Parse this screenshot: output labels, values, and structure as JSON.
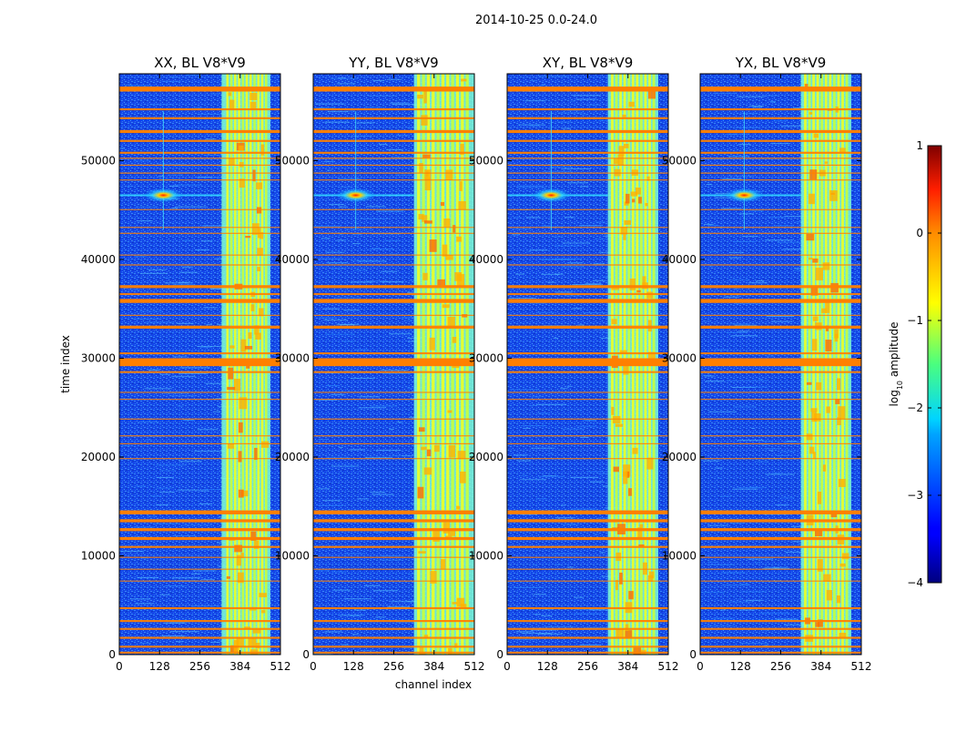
{
  "chart_data": {
    "type": "heatmap",
    "suptitle": "2014-10-25 0.0-24.0",
    "xlabel": "channel index",
    "ylabel": "time index",
    "xlim": [
      0,
      512
    ],
    "ylim": [
      0,
      58800
    ],
    "x_ticks": [
      0,
      128,
      256,
      384,
      512
    ],
    "y_ticks": [
      0,
      10000,
      20000,
      30000,
      40000,
      50000
    ],
    "panels": [
      {
        "title": "XX, BL V8*V9",
        "band_start": 325,
        "band_end": 480,
        "bright_band_start": 340,
        "bright_band_end": 475,
        "blob_channel": 140
      },
      {
        "title": "YY, BL V8*V9",
        "band_start": 320,
        "band_end": 512,
        "bright_band_start": 330,
        "bright_band_end": 500,
        "blob_channel": 135
      },
      {
        "title": "XY, BL V8*V9",
        "band_start": 320,
        "band_end": 480,
        "bright_band_start": 330,
        "bright_band_end": 475,
        "blob_channel": 140
      },
      {
        "title": "YX, BL V8*V9",
        "band_start": 320,
        "band_end": 480,
        "bright_band_start": 330,
        "bright_band_end": 475,
        "blob_channel": 140
      }
    ],
    "blob_time": 46500,
    "colorbar": {
      "label": "log10 amplitude",
      "label_main": "log",
      "label_sub": "10",
      "label_rest": " amplitude",
      "min": -4,
      "max": 1,
      "ticks": [
        1,
        0,
        -1,
        -2,
        -3,
        -4
      ],
      "tick_labels": [
        "1",
        "0",
        "−1",
        "−2",
        "−3",
        "−4"
      ],
      "colormap": "jet"
    },
    "flagged_rows": [
      {
        "start": 57000,
        "end": 57500,
        "strength": 1.0
      },
      {
        "start": 55100,
        "end": 55300,
        "strength": 0.9
      },
      {
        "start": 54200,
        "end": 54400,
        "strength": 0.9
      },
      {
        "start": 52800,
        "end": 53100,
        "strength": 1.0
      },
      {
        "start": 51900,
        "end": 52100,
        "strength": 0.9
      },
      {
        "start": 50700,
        "end": 50900,
        "strength": 0.9
      },
      {
        "start": 50200,
        "end": 50300,
        "strength": 0.8
      },
      {
        "start": 49500,
        "end": 49600,
        "strength": 0.8
      },
      {
        "start": 48700,
        "end": 48800,
        "strength": 0.8
      },
      {
        "start": 48000,
        "end": 48100,
        "strength": 0.7
      },
      {
        "start": 45000,
        "end": 45100,
        "strength": 0.6
      },
      {
        "start": 43200,
        "end": 43300,
        "strength": 0.6
      },
      {
        "start": 42600,
        "end": 42700,
        "strength": 0.7
      },
      {
        "start": 40400,
        "end": 40500,
        "strength": 0.6
      },
      {
        "start": 39400,
        "end": 39500,
        "strength": 0.8
      },
      {
        "start": 37100,
        "end": 37400,
        "strength": 0.9
      },
      {
        "start": 36400,
        "end": 36600,
        "strength": 0.8
      },
      {
        "start": 35600,
        "end": 36000,
        "strength": 1.0
      },
      {
        "start": 34300,
        "end": 34400,
        "strength": 0.7
      },
      {
        "start": 33000,
        "end": 33300,
        "strength": 0.9
      },
      {
        "start": 30400,
        "end": 30600,
        "strength": 0.8
      },
      {
        "start": 29200,
        "end": 30000,
        "strength": 1.0
      },
      {
        "start": 28500,
        "end": 28700,
        "strength": 0.8
      },
      {
        "start": 26500,
        "end": 26600,
        "strength": 0.6
      },
      {
        "start": 25800,
        "end": 25900,
        "strength": 0.6
      },
      {
        "start": 23800,
        "end": 23900,
        "strength": 0.7
      },
      {
        "start": 22100,
        "end": 22200,
        "strength": 0.7
      },
      {
        "start": 21300,
        "end": 21400,
        "strength": 0.7
      },
      {
        "start": 19800,
        "end": 19900,
        "strength": 0.6
      },
      {
        "start": 14200,
        "end": 14600,
        "strength": 1.0
      },
      {
        "start": 13400,
        "end": 13700,
        "strength": 1.0
      },
      {
        "start": 12500,
        "end": 12800,
        "strength": 1.0
      },
      {
        "start": 11600,
        "end": 11900,
        "strength": 1.0
      },
      {
        "start": 10800,
        "end": 11000,
        "strength": 0.9
      },
      {
        "start": 9800,
        "end": 9900,
        "strength": 0.7
      },
      {
        "start": 8600,
        "end": 8700,
        "strength": 0.6
      },
      {
        "start": 7400,
        "end": 7500,
        "strength": 0.6
      },
      {
        "start": 4600,
        "end": 4800,
        "strength": 0.9
      },
      {
        "start": 3300,
        "end": 3500,
        "strength": 0.9
      },
      {
        "start": 2500,
        "end": 2700,
        "strength": 0.8
      },
      {
        "start": 1600,
        "end": 1800,
        "strength": 0.9
      },
      {
        "start": 700,
        "end": 900,
        "strength": 0.8
      },
      {
        "start": 100,
        "end": 300,
        "strength": 0.8
      }
    ]
  }
}
